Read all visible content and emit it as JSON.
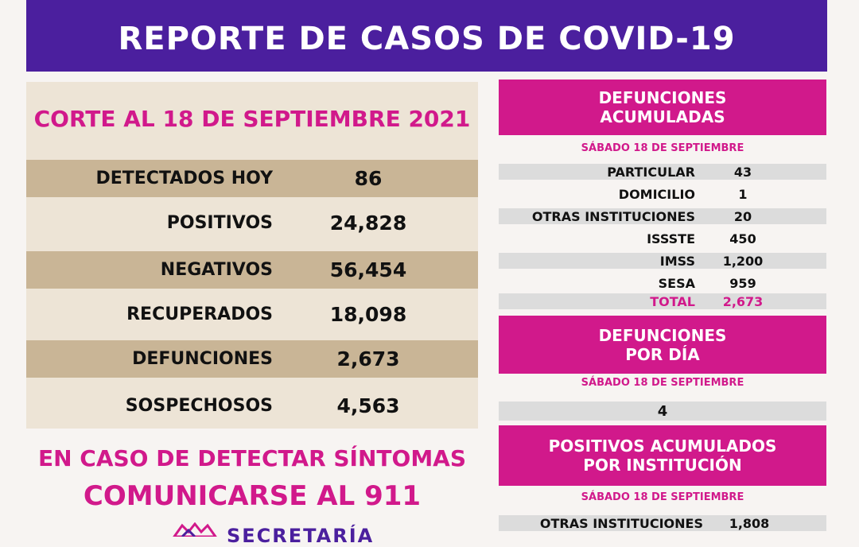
{
  "title": "REPORTE DE CASOS DE COVID-19",
  "corte": "CORTE AL 18 DE SEPTIEMBRE 2021",
  "stats": [
    {
      "label": "DETECTADOS HOY",
      "value": "86"
    },
    {
      "label": "POSITIVOS",
      "value": "24,828"
    },
    {
      "label": "NEGATIVOS",
      "value": "56,454"
    },
    {
      "label": "RECUPERADOS",
      "value": "18,098"
    },
    {
      "label": "DEFUNCIONES",
      "value": "2,673"
    },
    {
      "label": "SOSPECHOSOS",
      "value": "4,563"
    }
  ],
  "cta": {
    "line1": "EN CASO DE DETECTAR SÍNTOMAS",
    "line2": "COMUNICARSE AL 911"
  },
  "footer_logo_text": "SECRETARÍA",
  "defunciones_acumuladas": {
    "heading_line1": "DEFUNCIONES",
    "heading_line2": "ACUMULADAS",
    "date": "SÁBADO 18 DE SEPTIEMBRE",
    "rows": [
      {
        "label": "PARTICULAR",
        "value": "43"
      },
      {
        "label": "DOMICILIO",
        "value": "1"
      },
      {
        "label": "OTRAS INSTITUCIONES",
        "value": "20"
      },
      {
        "label": "ISSSTE",
        "value": "450"
      },
      {
        "label": "IMSS",
        "value": "1,200"
      },
      {
        "label": "SESA",
        "value": "959"
      }
    ],
    "total_label": "TOTAL",
    "total_value": "2,673"
  },
  "defunciones_por_dia": {
    "heading_line1": "DEFUNCIONES",
    "heading_line2": "POR DÍA",
    "date": "SÁBADO 18 DE SEPTIEMBRE",
    "value": "4"
  },
  "positivos_institucion": {
    "heading_line1": "POSITIVOS ACUMULADOS",
    "heading_line2": "POR INSTITUCIÓN",
    "date": "SÁBADO 18 DE SEPTIEMBRE",
    "rows": [
      {
        "label": "OTRAS INSTITUCIONES",
        "value": "1,808"
      }
    ]
  },
  "colors": {
    "purple": "#4b1f9e",
    "magenta": "#d1198b",
    "tan": "#c9b596",
    "beige": "#ede4d6",
    "gray": "#dcdcdc"
  }
}
